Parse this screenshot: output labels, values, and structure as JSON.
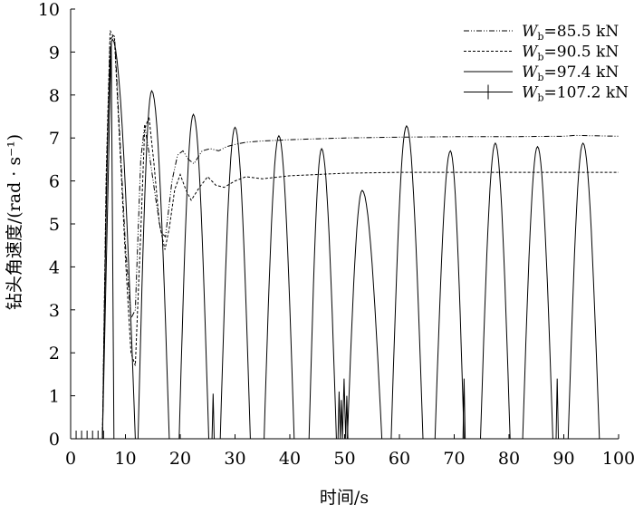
{
  "chart_data": {
    "type": "line",
    "title": "",
    "xlabel": "时间/s",
    "ylabel": "钻头角速度/(rad · s⁻¹)",
    "xlim": [
      0,
      100
    ],
    "ylim": [
      0,
      10
    ],
    "xticks": [
      0,
      10,
      20,
      30,
      40,
      50,
      60,
      70,
      80,
      90,
      100
    ],
    "yticks": [
      0,
      1,
      2,
      3,
      4,
      5,
      6,
      7,
      8,
      9,
      10
    ],
    "grid": false,
    "legend_position": "top-right",
    "series": [
      {
        "name": "W_b=85.5 kN",
        "label_var": "W",
        "label_sub": "b",
        "label_rest": "=85.5 kN",
        "style": "dash-dot-dot",
        "x": [
          0,
          5.8,
          6.5,
          7.2,
          8.0,
          9.0,
          10.0,
          11.0,
          11.8,
          12.8,
          13.5,
          14.5,
          15.5,
          16.5,
          17.3,
          18.5,
          19.5,
          20.5,
          21.5,
          22.5,
          24.0,
          25.5,
          27.0,
          28.5,
          30.0,
          32.0,
          35.0,
          40.0,
          45.0,
          50.0,
          60.0,
          70.0,
          80.0,
          90.0,
          92.0,
          100.0
        ],
        "y": [
          0,
          0,
          6.0,
          9.3,
          9.4,
          7.0,
          4.5,
          2.8,
          3.0,
          6.5,
          7.3,
          6.5,
          5.6,
          4.8,
          4.7,
          6.0,
          6.6,
          6.7,
          6.5,
          6.4,
          6.7,
          6.75,
          6.7,
          6.8,
          6.85,
          6.9,
          6.93,
          6.96,
          6.98,
          7.0,
          7.02,
          7.03,
          7.03,
          7.04,
          7.06,
          7.04
        ]
      },
      {
        "name": "W_b=90.5 kN",
        "label_var": "W",
        "label_sub": "b",
        "label_rest": "=90.5 kN",
        "style": "dashed",
        "x": [
          0,
          5.8,
          6.5,
          7.2,
          8.0,
          9.0,
          10.0,
          11.0,
          11.8,
          12.8,
          13.5,
          14.3,
          15.2,
          16.2,
          17.2,
          18.0,
          19.0,
          20.0,
          21.0,
          22.0,
          23.5,
          25.0,
          26.5,
          28.0,
          30.0,
          32.0,
          35.0,
          40.0,
          50.0,
          60.0,
          70.0,
          80.0,
          90.0,
          100.0
        ],
        "y": [
          0,
          0,
          6.2,
          9.5,
          9.3,
          6.8,
          4.2,
          2.0,
          1.7,
          4.8,
          7.2,
          7.5,
          6.4,
          5.0,
          4.4,
          4.9,
          5.8,
          6.15,
          5.8,
          5.55,
          5.85,
          6.1,
          5.9,
          5.85,
          6.0,
          6.1,
          6.05,
          6.12,
          6.18,
          6.2,
          6.2,
          6.2,
          6.2,
          6.2
        ]
      },
      {
        "name": "W_b=97.4 kN",
        "label_var": "W",
        "label_sub": "b",
        "label_rest": "=97.4 kN",
        "style": "solid",
        "peaks": [
          {
            "start": 5.8,
            "peak": 7.6,
            "end": 11.8,
            "value": 9.3
          },
          {
            "start": 12.3,
            "peak": 14.8,
            "end": 18.0,
            "value": 8.1
          },
          {
            "start": 19.8,
            "peak": 22.4,
            "end": 25.2,
            "value": 7.55
          },
          {
            "start": 27.3,
            "peak": 30.0,
            "end": 32.8,
            "value": 7.25
          },
          {
            "start": 35.3,
            "peak": 38.0,
            "end": 40.8,
            "value": 7.05
          },
          {
            "start": 43.5,
            "peak": 45.8,
            "end": 48.5,
            "value": 6.75
          },
          {
            "start": 50.5,
            "peak": 53.2,
            "end": 56.8,
            "value": 5.78
          },
          {
            "start": 58.5,
            "peak": 61.3,
            "end": 64.3,
            "value": 7.28
          },
          {
            "start": 66.5,
            "peak": 69.3,
            "end": 71.8,
            "value": 6.7
          },
          {
            "start": 74.8,
            "peak": 77.5,
            "end": 80.2,
            "value": 6.88
          },
          {
            "start": 82.5,
            "peak": 85.2,
            "end": 88.0,
            "value": 6.8
          },
          {
            "start": 90.8,
            "peak": 93.5,
            "end": 96.5,
            "value": 6.88
          }
        ]
      },
      {
        "name": "W_b=107.2 kN",
        "label_var": "W",
        "label_sub": "b",
        "label_rest": "=107.2 kN",
        "style": "solid-with-ticks",
        "marker_x": [
          0,
          1,
          2,
          3,
          4,
          5,
          6
        ],
        "x": [
          0,
          5.8,
          7.4,
          7.9,
          25.8,
          26.0,
          26.2,
          48.8,
          49.0,
          49.2,
          49.4,
          49.6,
          49.9,
          50.2,
          50.4,
          50.6,
          50.9,
          71.6,
          71.8,
          72.0,
          72.2,
          88.6,
          88.8,
          89.0,
          100.0
        ],
        "y": [
          0,
          0,
          9.2,
          0,
          0,
          1.05,
          0,
          0,
          1.1,
          0,
          0.9,
          0,
          1.4,
          0,
          1.0,
          0,
          0,
          0,
          1.4,
          0,
          0,
          0,
          1.4,
          0,
          0
        ]
      }
    ]
  }
}
